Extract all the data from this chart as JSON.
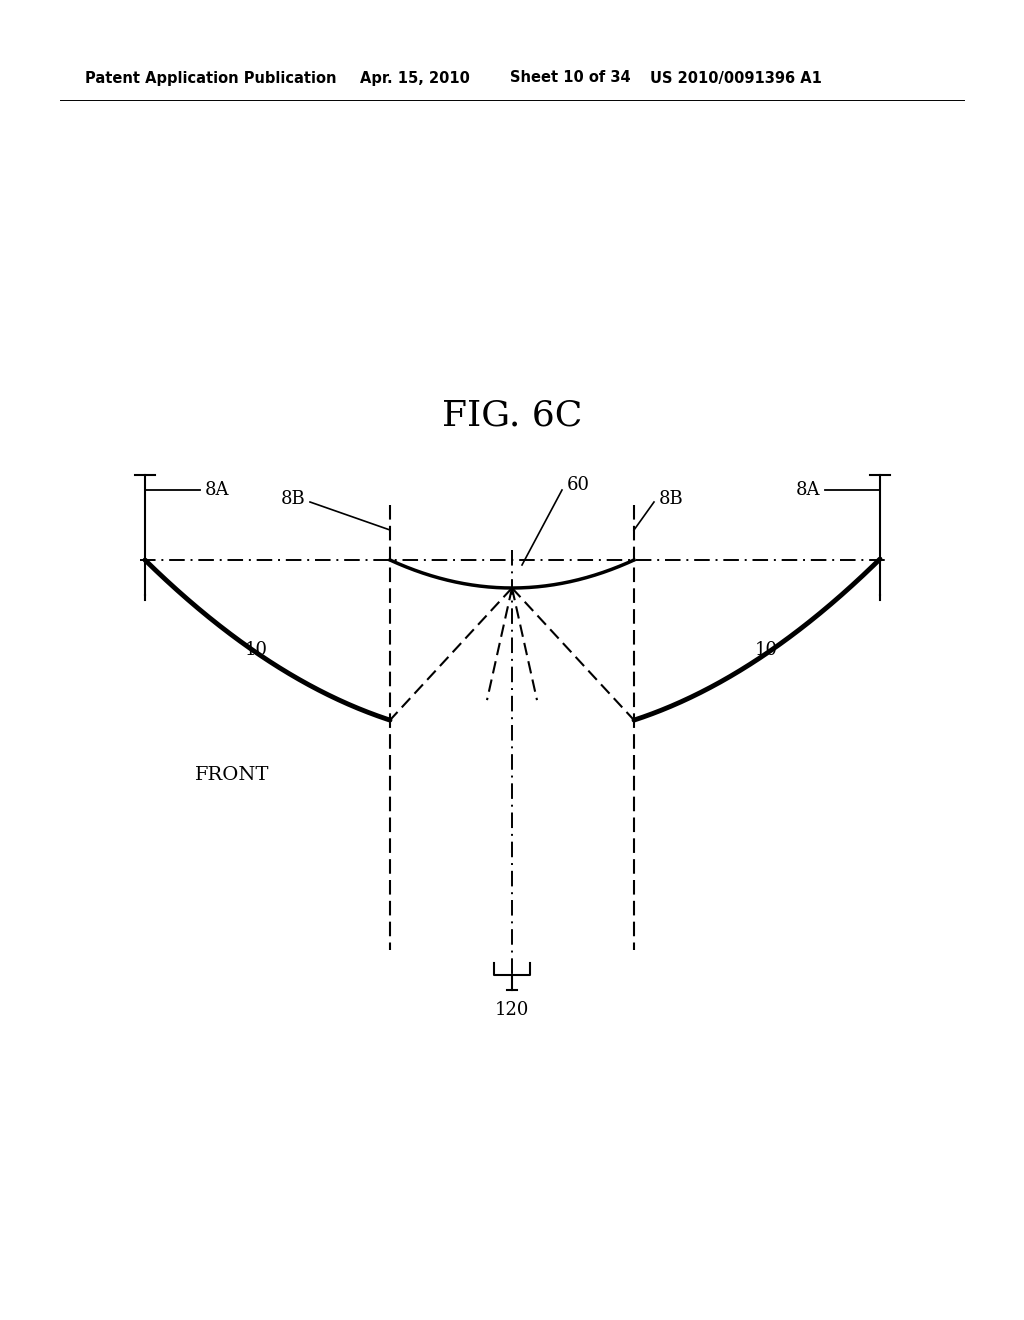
{
  "fig_label": "FIG. 6C",
  "patent_header": "Patent Application Publication",
  "patent_date": "Apr. 15, 2010",
  "patent_sheet": "Sheet 10 of 34",
  "patent_number": "US 2010/0091396 A1",
  "background_color": "#ffffff",
  "text_color": "#000000",
  "label_8A": "8A",
  "label_8B": "8B",
  "label_60": "60",
  "label_10": "10",
  "label_120": "120",
  "label_FRONT": "FRONT",
  "header_fontsize": 10.5,
  "fig_label_fontsize": 26,
  "annotation_fontsize": 13
}
